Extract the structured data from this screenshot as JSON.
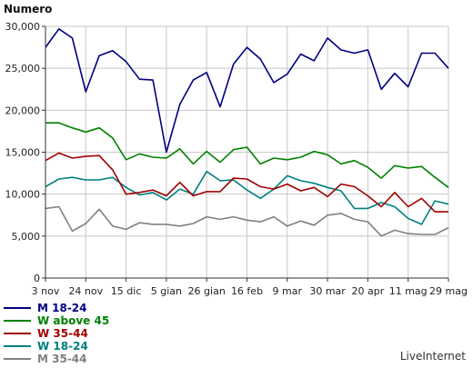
{
  "chart_data": {
    "type": "line",
    "ylabel": "Numero",
    "xlabel": "",
    "ylim": [
      0,
      30000
    ],
    "yticks": [
      0,
      5000,
      10000,
      15000,
      20000,
      25000,
      30000
    ],
    "ytick_labels": [
      "0",
      "5,000",
      "10,000",
      "15,000",
      "20,000",
      "25,000",
      "30,000"
    ],
    "grid": true,
    "legend_position": "bottom-left",
    "x_tick_labels": [
      "3 nov",
      "24 nov",
      "15 dic",
      "5 gian",
      "26 gian",
      "16 feb",
      "9 mar",
      "30 mar",
      "20 apr",
      "11 mag",
      "29 mag"
    ],
    "series": [
      {
        "name": "M 18-24",
        "color": "#000080",
        "values": [
          27500,
          29700,
          28600,
          22200,
          26500,
          27100,
          25800,
          23700,
          23600,
          15000,
          20700,
          23600,
          24500,
          20400,
          25500,
          27500,
          26100,
          23300,
          24300,
          26700,
          25900,
          28600,
          27200,
          26800,
          27200,
          22500,
          24400,
          22800,
          26800,
          26800,
          25000
        ]
      },
      {
        "name": "W above 45",
        "color": "#008000",
        "values": [
          18500,
          18500,
          17900,
          17400,
          17900,
          16700,
          14100,
          14800,
          14400,
          14300,
          15400,
          13600,
          15100,
          13800,
          15300,
          15600,
          13600,
          14300,
          14100,
          14400,
          15100,
          14700,
          13600,
          14000,
          13200,
          11900,
          13400,
          13100,
          13300,
          12000,
          10800
        ]
      },
      {
        "name": "W 35-44",
        "color": "#a00000",
        "values": [
          14000,
          14900,
          14300,
          14500,
          14600,
          12900,
          10000,
          10200,
          10500,
          9800,
          11400,
          9800,
          10300,
          10300,
          11900,
          11800,
          10900,
          10600,
          11200,
          10400,
          10800,
          9700,
          11200,
          10900,
          9800,
          8500,
          10200,
          8500,
          9500,
          7900,
          7900
        ]
      },
      {
        "name": "W 18-24",
        "color": "#008080",
        "values": [
          10900,
          11800,
          12000,
          11700,
          11700,
          12000,
          10800,
          9900,
          10200,
          9300,
          10600,
          10000,
          12700,
          11600,
          11700,
          10500,
          9500,
          10600,
          12200,
          11600,
          11300,
          10800,
          10400,
          8300,
          8300,
          9000,
          8500,
          7100,
          6400,
          9200,
          8800
        ]
      },
      {
        "name": "M 35-44",
        "color": "#808080",
        "values": [
          8300,
          8500,
          5600,
          6500,
          8200,
          6200,
          5800,
          6600,
          6400,
          6400,
          6200,
          6500,
          7300,
          7000,
          7300,
          6900,
          6700,
          7300,
          6200,
          6800,
          6300,
          7500,
          7700,
          7000,
          6700,
          5000,
          5700,
          5300,
          5200,
          5200,
          6000
        ]
      }
    ]
  },
  "branding": {
    "text": "LiveInternet"
  }
}
